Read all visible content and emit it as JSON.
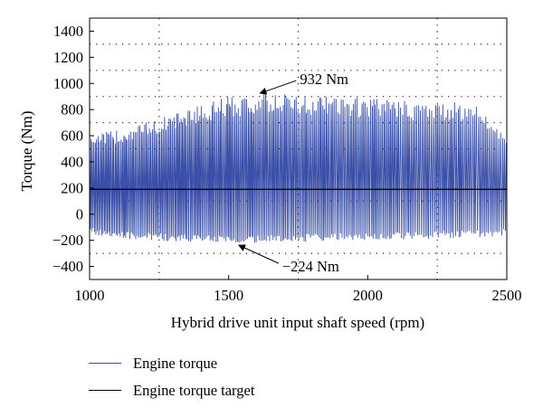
{
  "chart_data": {
    "type": "line",
    "title": "",
    "xlabel": "Hybrid drive unit input shaft speed (rpm)",
    "ylabel": "Torque (Nm)",
    "xlim": [
      1000,
      2500
    ],
    "ylim": [
      -500,
      1500
    ],
    "xticks": [
      1000,
      1500,
      2000,
      2500
    ],
    "yticks": [
      -400,
      -200,
      0,
      200,
      400,
      600,
      800,
      1000,
      1200,
      1400
    ],
    "grid": "dotted, minor",
    "legend_position": "below",
    "series": [
      {
        "name": "Engine torque",
        "color": "#3a4fa8",
        "style": "oscillating",
        "envelope": {
          "x": [
            1000,
            1100,
            1200,
            1300,
            1400,
            1500,
            1600,
            1700,
            1800,
            1900,
            2000,
            2100,
            2200,
            2300,
            2400,
            2500
          ],
          "max": [
            620,
            640,
            700,
            770,
            840,
            900,
            920,
            930,
            910,
            900,
            890,
            880,
            860,
            860,
            840,
            600
          ],
          "min": [
            -150,
            -190,
            -200,
            -210,
            -218,
            -224,
            -220,
            -215,
            -210,
            -205,
            -200,
            -195,
            -190,
            -185,
            -180,
            -160
          ]
        }
      },
      {
        "name": "Engine torque target",
        "color": "#000000",
        "style": "constant",
        "x": [
          1000,
          2500
        ],
        "y": [
          190,
          190
        ]
      }
    ],
    "annotations": [
      {
        "text": "932 Nm",
        "x": 1600,
        "y": 932
      },
      {
        "text": "−224 Nm",
        "x": 1530,
        "y": -224
      }
    ]
  }
}
